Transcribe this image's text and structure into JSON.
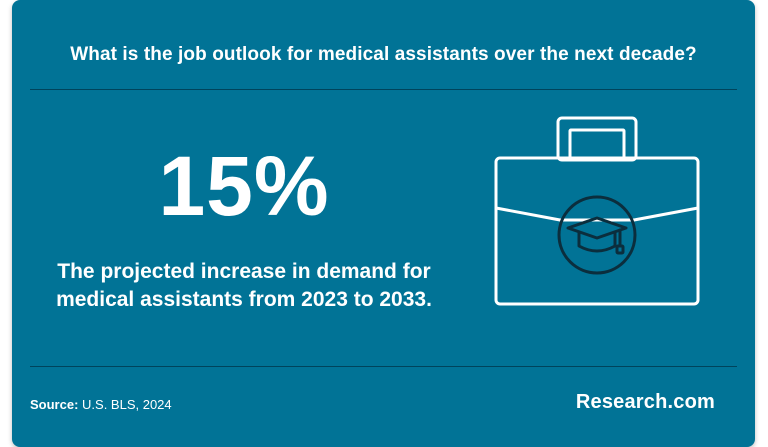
{
  "card": {
    "title": "What is the job outlook for medical assistants over the next decade?",
    "stat_value": "15%",
    "stat_description": "The projected increase in demand for medical assistants from 2023 to 2033.",
    "icon": "briefcase-graduation-cap-icon"
  },
  "footer": {
    "source_label": "Source:",
    "source_text": "U.S. BLS, 2024",
    "brand": "Research.com"
  },
  "colors": {
    "background": "#017396",
    "text": "#ffffff",
    "icon_dark": "#0b2e3d"
  }
}
